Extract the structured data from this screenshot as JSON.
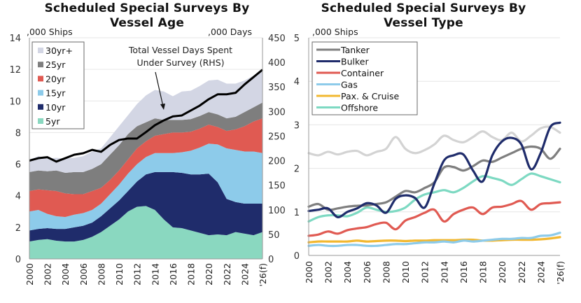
{
  "chart_data": [
    {
      "type": "area",
      "title": "Scheduled Special Surveys By Vessel Age",
      "ylabel": ",000 Ships",
      "y2label": ",000 Days",
      "ylim": [
        0,
        14
      ],
      "y2lim": [
        0,
        450
      ],
      "yticks": [
        0,
        2,
        4,
        6,
        8,
        10,
        12,
        14
      ],
      "y2ticks": [
        0,
        50,
        100,
        150,
        200,
        250,
        300,
        350,
        400,
        450
      ],
      "x": [
        2000,
        2001,
        2002,
        2003,
        2004,
        2005,
        2006,
        2007,
        2008,
        2009,
        2010,
        2011,
        2012,
        2013,
        2014,
        2015,
        2016,
        2017,
        2018,
        2019,
        2020,
        2021,
        2022,
        2023,
        2024,
        2025,
        2026
      ],
      "xtick_labels": [
        "2000",
        "2002",
        "2004",
        "2006",
        "2008",
        "2010",
        "2012",
        "2014",
        "2016",
        "2018",
        "2020",
        "2022",
        "2024",
        "'26(f)"
      ],
      "grid": true,
      "legend": "top-left",
      "series": [
        {
          "name": "5yr",
          "color": "#8ad8c0",
          "values": [
            1.1,
            1.2,
            1.25,
            1.15,
            1.1,
            1.1,
            1.2,
            1.4,
            1.7,
            2.1,
            2.5,
            3.0,
            3.3,
            3.35,
            3.1,
            2.5,
            2.0,
            1.95,
            1.8,
            1.65,
            1.5,
            1.55,
            1.5,
            1.7,
            1.6,
            1.5,
            1.7
          ]
        },
        {
          "name": "10yr",
          "color": "#1f2c6b",
          "values": [
            0.7,
            0.7,
            0.7,
            0.75,
            0.8,
            0.9,
            0.9,
            0.9,
            1.0,
            1.1,
            1.2,
            1.3,
            1.6,
            2.0,
            2.4,
            3.0,
            3.5,
            3.5,
            3.55,
            3.7,
            3.9,
            3.3,
            2.3,
            1.9,
            1.9,
            2.0,
            1.8
          ]
        },
        {
          "name": "15yr",
          "color": "#8dcbea",
          "values": [
            1.2,
            1.2,
            0.9,
            0.8,
            0.75,
            0.8,
            0.8,
            0.8,
            0.8,
            0.9,
            1.0,
            1.1,
            1.1,
            1.1,
            1.2,
            1.2,
            1.2,
            1.3,
            1.5,
            1.7,
            1.9,
            2.4,
            3.2,
            3.3,
            3.3,
            3.3,
            3.2
          ]
        },
        {
          "name": "20yr",
          "color": "#e05a52",
          "values": [
            1.3,
            1.3,
            1.5,
            1.6,
            1.5,
            1.3,
            1.2,
            1.2,
            1.0,
            0.9,
            0.9,
            0.9,
            1.0,
            1.0,
            1.1,
            1.2,
            1.3,
            1.25,
            1.2,
            1.2,
            1.2,
            1.1,
            1.1,
            1.3,
            1.6,
            1.9,
            2.2
          ]
        },
        {
          "name": "25yr",
          "color": "#7e7e7e",
          "values": [
            1.2,
            1.2,
            1.2,
            1.3,
            1.3,
            1.4,
            1.4,
            1.4,
            1.5,
            1.6,
            1.6,
            1.6,
            1.4,
            1.2,
            1.1,
            0.9,
            0.8,
            0.8,
            0.8,
            0.8,
            0.8,
            0.8,
            0.8,
            0.8,
            0.9,
            0.9,
            1.0
          ]
        },
        {
          "name": "30yr+",
          "color": "#d3d6e4",
          "values": [
            0.8,
            0.9,
            0.8,
            0.8,
            0.9,
            0.9,
            1.0,
            1.1,
            1.0,
            1.1,
            1.2,
            1.2,
            1.4,
            1.7,
            1.8,
            1.8,
            1.5,
            1.8,
            1.8,
            1.9,
            2.0,
            2.2,
            2.2,
            2.1,
            2.0,
            2.0,
            2.1
          ]
        }
      ],
      "line_series": {
        "name": "Total Vessel Days Spent Under Survey (RHS)",
        "axis": "right",
        "color": "#000000",
        "values": [
          200,
          205,
          207,
          198,
          205,
          212,
          215,
          222,
          218,
          232,
          242,
          245,
          245,
          258,
          272,
          282,
          290,
          292,
          302,
          312,
          325,
          335,
          335,
          338,
          355,
          370,
          385
        ]
      },
      "annotation": {
        "lines": [
          "Total Vessel Days Spent",
          "Under Survey (RHS)"
        ]
      }
    },
    {
      "type": "line",
      "title": "Scheduled Special Surveys By Vessel Type",
      "ylabel": ",000 Ships",
      "ylim": [
        0,
        5
      ],
      "yticks": [
        0,
        1,
        2,
        3,
        4,
        5
      ],
      "x": [
        2000,
        2001,
        2002,
        2003,
        2004,
        2005,
        2006,
        2007,
        2008,
        2009,
        2010,
        2011,
        2012,
        2013,
        2014,
        2015,
        2016,
        2017,
        2018,
        2019,
        2020,
        2021,
        2022,
        2023,
        2024,
        2025,
        2026
      ],
      "xtick_labels": [
        "2000",
        "2002",
        "2004",
        "2006",
        "2008",
        "2010",
        "2012",
        "2014",
        "2016",
        "2018",
        "2020",
        "2022",
        "2024",
        "'26(f)"
      ],
      "grid": true,
      "legend": "top-left",
      "series": [
        {
          "name": "Tanker",
          "color": "#7f7f7f",
          "values": [
            1.12,
            1.18,
            1.05,
            1.08,
            1.12,
            1.14,
            1.15,
            1.18,
            1.22,
            1.35,
            1.48,
            1.45,
            1.55,
            1.68,
            2.02,
            2.03,
            1.95,
            2.05,
            2.18,
            2.15,
            2.25,
            2.35,
            2.45,
            2.5,
            2.45,
            2.22,
            2.45
          ]
        },
        {
          "name": "Bulker",
          "color": "#1f2c6b",
          "values": [
            1.02,
            1.05,
            1.08,
            0.88,
            1.0,
            1.08,
            1.2,
            1.15,
            0.98,
            1.3,
            1.38,
            1.32,
            1.1,
            1.65,
            2.18,
            2.3,
            2.32,
            1.95,
            1.7,
            2.3,
            2.62,
            2.7,
            2.55,
            1.98,
            2.35,
            2.95,
            3.05
          ]
        },
        {
          "name": "Container",
          "color": "#e05a52",
          "values": [
            0.45,
            0.48,
            0.55,
            0.5,
            0.58,
            0.62,
            0.65,
            0.72,
            0.75,
            0.6,
            0.8,
            0.88,
            0.98,
            1.05,
            0.78,
            0.95,
            1.05,
            1.1,
            0.95,
            1.1,
            1.12,
            1.18,
            1.25,
            1.05,
            1.18,
            1.2,
            1.22
          ]
        },
        {
          "name": "Gas",
          "color": "#8dcbea",
          "values": [
            0.22,
            0.24,
            0.22,
            0.22,
            0.24,
            0.24,
            0.22,
            0.22,
            0.24,
            0.26,
            0.26,
            0.28,
            0.3,
            0.3,
            0.32,
            0.3,
            0.34,
            0.32,
            0.34,
            0.36,
            0.38,
            0.38,
            0.4,
            0.4,
            0.45,
            0.46,
            0.52
          ]
        },
        {
          "name": "Pax. & Cruise",
          "color": "#f2b830",
          "values": [
            0.3,
            0.32,
            0.32,
            0.32,
            0.32,
            0.34,
            0.32,
            0.33,
            0.34,
            0.34,
            0.33,
            0.34,
            0.34,
            0.35,
            0.35,
            0.35,
            0.36,
            0.36,
            0.34,
            0.34,
            0.35,
            0.36,
            0.36,
            0.36,
            0.37,
            0.39,
            0.42
          ]
        },
        {
          "name": "Offshore",
          "color": "#7dd9c2",
          "values": [
            0.78,
            0.88,
            0.92,
            0.92,
            0.9,
            0.98,
            1.1,
            1.05,
            1.0,
            1.02,
            1.1,
            1.28,
            1.4,
            1.45,
            1.5,
            1.45,
            1.55,
            1.7,
            1.82,
            1.78,
            1.72,
            1.62,
            1.75,
            1.88,
            1.82,
            1.75,
            1.68
          ]
        },
        {
          "name": "(unlabeled)",
          "color": "#d3d3d3",
          "values": [
            2.35,
            2.3,
            2.38,
            2.32,
            2.38,
            2.4,
            2.3,
            2.38,
            2.45,
            2.72,
            2.45,
            2.35,
            2.42,
            2.55,
            2.75,
            2.65,
            2.6,
            2.72,
            2.85,
            2.72,
            2.65,
            2.82,
            2.62,
            2.75,
            2.92,
            2.95,
            2.82
          ]
        }
      ]
    }
  ]
}
